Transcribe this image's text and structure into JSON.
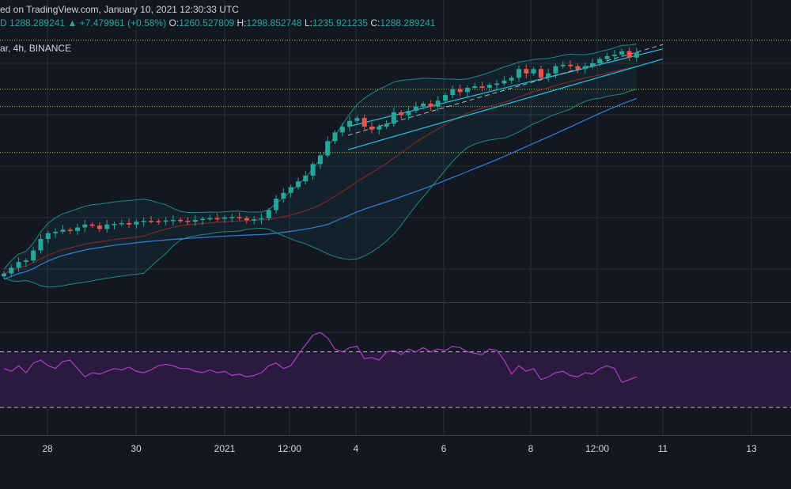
{
  "header": {
    "line1": "ed on TradingView.com, January 10, 2021 12:30:33 UTC",
    "line2_lead": "D",
    "close_value": "1288.289241",
    "change_arrow": "▲",
    "change": "+7.479961 (+0.58%)",
    "open_label": "O:",
    "open": "1260.527809",
    "high_label": "H:",
    "high": "1298.852748",
    "low_label": "L:",
    "low": "1235.921235",
    "close_label": "C:",
    "close": "1288.289241",
    "symbol_line": "ar, 4h, BINANCE"
  },
  "colors": {
    "background": "#131722",
    "grid": "#2a2e39",
    "up": "#26a69a",
    "down": "#ef5350",
    "channel": "#1ec6e6",
    "bb_basis": "#8b2a2a",
    "bb_band": "#1f8a7a",
    "ma": "#2f80d8",
    "rsi": "#b03cc8",
    "rsi_band": "#2a1a3d",
    "level": "#c8c83a"
  },
  "x_axis_labels": [
    "28",
    "30",
    "2021",
    "12:00",
    "4",
    "6",
    "8",
    "12:00",
    "11",
    "13"
  ],
  "chart_data": [
    {
      "type": "candlestick",
      "timeframe": "4h",
      "exchange": "BINANCE",
      "last_ohlc": {
        "open": 1260.527809,
        "high": 1298.852748,
        "low": 1235.921235,
        "close": 1288.289241
      },
      "change": 7.479961,
      "change_pct": 0.58,
      "closes": [
        520,
        540,
        560,
        565,
        600,
        640,
        660,
        665,
        672,
        668,
        680,
        690,
        686,
        675,
        690,
        692,
        695,
        690,
        700,
        703,
        702,
        700,
        704,
        706,
        703,
        700,
        706,
        710,
        712,
        710,
        715,
        716,
        712,
        705,
        708,
        712,
        740,
        780,
        800,
        820,
        840,
        860,
        900,
        930,
        980,
        1010,
        1030,
        1050,
        1060,
        1030,
        1020,
        1030,
        1040,
        1080,
        1070,
        1085,
        1100,
        1110,
        1100,
        1120,
        1140,
        1160,
        1150,
        1165,
        1170,
        1165,
        1175,
        1180,
        1190,
        1200,
        1230,
        1215,
        1230,
        1200,
        1215,
        1240,
        1245,
        1240,
        1230,
        1240,
        1250,
        1265,
        1275,
        1280,
        1292,
        1270,
        1288
      ],
      "channel": {
        "upper": [
          [
            1030,
            1300
          ]
        ],
        "middle": [
          [
            1000,
            1315
          ]
        ],
        "lower": [
          [
            950,
            1265
          ]
        ]
      },
      "levels": [
        1330,
        1160,
        1100,
        940
      ]
    },
    {
      "type": "line",
      "name": "RSI",
      "levels": [
        70,
        30
      ],
      "values": [
        58,
        56,
        60,
        55,
        62,
        64,
        60,
        58,
        63,
        64,
        58,
        52,
        55,
        54,
        56,
        58,
        57,
        59,
        56,
        55,
        57,
        60,
        61,
        60,
        58,
        58,
        56,
        55,
        57,
        55,
        56,
        53,
        54,
        52,
        53,
        55,
        60,
        62,
        58,
        60,
        68,
        75,
        82,
        84,
        80,
        72,
        70,
        73,
        74,
        65,
        66,
        64,
        70,
        71,
        68,
        72,
        70,
        73,
        70,
        72,
        71,
        74,
        73,
        70,
        69,
        68,
        72,
        71,
        64,
        54,
        60,
        56,
        58,
        50,
        52,
        55,
        56,
        53,
        52,
        55,
        54,
        58,
        60,
        58,
        48,
        50,
        52
      ]
    }
  ]
}
